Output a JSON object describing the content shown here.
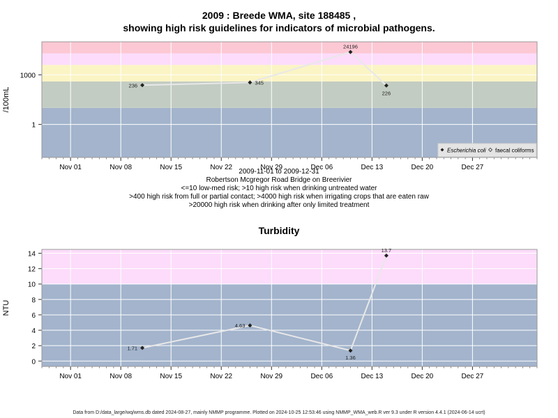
{
  "chart_data": [
    {
      "type": "line",
      "title": "2009 : Breede WMA, site 188485 ,",
      "title2": "showing high risk guidelines for indicators of microbial pathogens.",
      "ylabel": "/100mL",
      "yscale": "log",
      "ylim": [
        0.01,
        100000
      ],
      "yticks": [
        1,
        1000
      ],
      "ytick_labels": [
        "1",
        "1000"
      ],
      "xlim": [
        "2009-10-28",
        "2010-01-05"
      ],
      "xticks": [
        "2009-11-01",
        "2009-11-08",
        "2009-11-15",
        "2009-11-22",
        "2009-11-29",
        "2009-12-06",
        "2009-12-13",
        "2009-12-20",
        "2009-12-27"
      ],
      "xtick_labels": [
        "Nov 01",
        "Nov 08",
        "Nov 15",
        "Nov 22",
        "Nov 29",
        "Dec 06",
        "Dec 13",
        "Dec 20",
        "Dec 27"
      ],
      "bands": [
        {
          "from": 0.01,
          "to": 10,
          "color": "#a3b4cc"
        },
        {
          "from": 10,
          "to": 400,
          "color": "#c3ccc2"
        },
        {
          "from": 400,
          "to": 4000,
          "color": "#fbf4c4"
        },
        {
          "from": 4000,
          "to": 20000,
          "color": "#fcdcfa"
        },
        {
          "from": 20000,
          "to": 100000,
          "color": "#fcc8d4"
        }
      ],
      "series": [
        {
          "name": "Escherichia coli",
          "color": "#e8e8e8",
          "marker": "filled-diamond",
          "points": [
            {
              "x": "2009-11-11",
              "y": 236,
              "label": "236"
            },
            {
              "x": "2009-11-26",
              "y": 345,
              "label": "345"
            },
            {
              "x": "2009-12-10",
              "y": 24196,
              "label": "24196"
            },
            {
              "x": "2009-12-15",
              "y": 226,
              "label": "226"
            }
          ]
        }
      ],
      "legend": {
        "placement": "bottom-right",
        "items": [
          "Escherichia coli",
          "faecal coliforms"
        ]
      },
      "grid": true,
      "caption_lines": [
        "2009-11-01 to 2009-12-31",
        "Robertson Mcgregor Road Bridge on Breerivier",
        "<=10 low-med risk; >10 high risk when drinking untreated water",
        ">400 high risk from full or partial contact; >4000 high risk when irrigating crops that are eaten raw",
        ">20000 high risk when drinking after only limited treatment"
      ]
    },
    {
      "type": "line",
      "title": "Turbidity",
      "ylabel": "NTU",
      "ylim": [
        -0.7,
        14.5
      ],
      "yticks": [
        0,
        2,
        4,
        6,
        8,
        10,
        12,
        14
      ],
      "ytick_labels": [
        "0",
        "2",
        "4",
        "6",
        "8",
        "10",
        "12",
        "14"
      ],
      "xlim": [
        "2009-10-28",
        "2010-01-05"
      ],
      "xticks": [
        "2009-11-01",
        "2009-11-08",
        "2009-11-15",
        "2009-11-22",
        "2009-11-29",
        "2009-12-06",
        "2009-12-13",
        "2009-12-20",
        "2009-12-27"
      ],
      "xtick_labels": [
        "Nov 01",
        "Nov 08",
        "Nov 15",
        "Nov 22",
        "Nov 29",
        "Dec 06",
        "Dec 13",
        "Dec 20",
        "Dec 27"
      ],
      "bands": [
        {
          "from": -0.7,
          "to": 10,
          "color": "#a3b4cc"
        },
        {
          "from": 10,
          "to": 14.5,
          "color": "#fcdcfa"
        }
      ],
      "series": [
        {
          "color": "#e8e8e8",
          "marker": "filled-diamond",
          "points": [
            {
              "x": "2009-11-11",
              "y": 1.71,
              "label": "1.71"
            },
            {
              "x": "2009-11-26",
              "y": 4.63,
              "label": "4.63"
            },
            {
              "x": "2009-12-10",
              "y": 1.36,
              "label": "1.36"
            },
            {
              "x": "2009-12-15",
              "y": 13.7,
              "label": "13.7"
            }
          ]
        }
      ],
      "grid": true
    }
  ],
  "footer": "Data from D:/data_large/wq/wms.db dated 2024-08-27, mainly NMMP programme. Plotted on 2024-10-25 12:53:46 using NMMP_WMA_web.R ver 9.3 under R version 4.4.1 (2024-06-14 ucrt)"
}
